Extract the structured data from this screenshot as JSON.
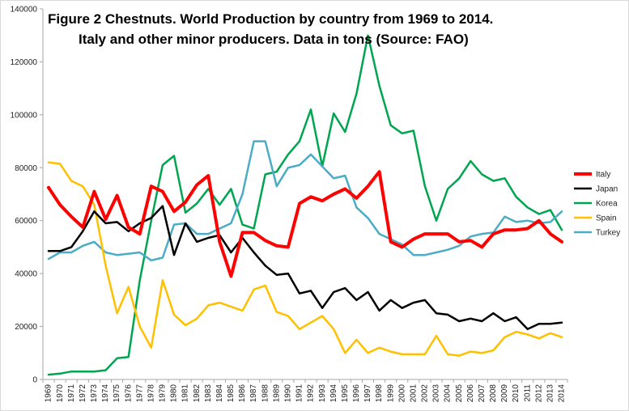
{
  "chart_data": {
    "type": "line",
    "title_lines": [
      "Figure 2 Chestnuts. World Production by country from 1969 to 2014.",
      "Italy and other minor producers. Data in tons (Source: FAO)"
    ],
    "xlabel": "",
    "ylabel": "",
    "ylim": [
      0,
      140000
    ],
    "yticks": [
      0,
      20000,
      40000,
      60000,
      80000,
      100000,
      120000,
      140000
    ],
    "grid": false,
    "legend_position": "right",
    "x": [
      1969,
      1970,
      1971,
      1972,
      1973,
      1974,
      1975,
      1976,
      1977,
      1978,
      1979,
      1980,
      1981,
      1982,
      1983,
      1984,
      1985,
      1986,
      1987,
      1988,
      1989,
      1990,
      1991,
      1992,
      1993,
      1994,
      1995,
      1996,
      1997,
      1998,
      1999,
      2000,
      2001,
      2002,
      2003,
      2004,
      2005,
      2006,
      2007,
      2008,
      2009,
      2010,
      2011,
      2012,
      2013,
      2014
    ],
    "series": [
      {
        "name": "Italy",
        "color": "#ff0000",
        "width": 4,
        "values": [
          72500,
          66000,
          61500,
          57500,
          71000,
          60500,
          69500,
          57500,
          55000,
          73000,
          71000,
          63500,
          67000,
          73500,
          77000,
          52000,
          39000,
          55500,
          55500,
          52500,
          50500,
          50000,
          66500,
          69000,
          67500,
          70000,
          72000,
          68500,
          73000,
          78500,
          52000,
          50000,
          53000,
          55000,
          55000,
          55000,
          52000,
          52500,
          50000,
          55000,
          56500,
          56500,
          57000,
          60000,
          55000,
          52000
        ]
      },
      {
        "name": "Japan",
        "color": "#000000",
        "width": 2.5,
        "values": [
          48500,
          48500,
          50000,
          56000,
          63500,
          59000,
          59500,
          56000,
          59000,
          61000,
          65500,
          47000,
          59000,
          52000,
          53500,
          54500,
          48000,
          53500,
          48000,
          43000,
          39500,
          40000,
          32500,
          33500,
          27000,
          33000,
          34500,
          30000,
          33000,
          26000,
          30000,
          27000,
          29000,
          30000,
          25000,
          24500,
          22000,
          23000,
          22000,
          25000,
          22000,
          23500,
          19000,
          21000,
          21000,
          21500
        ]
      },
      {
        "name": "Korea",
        "color": "#00a550",
        "width": 2.5,
        "values": [
          1800,
          2200,
          3000,
          3000,
          3000,
          3500,
          8000,
          8500,
          37500,
          60000,
          81000,
          84500,
          63000,
          66500,
          72000,
          66000,
          72000,
          58500,
          57000,
          77500,
          78500,
          85000,
          90000,
          102000,
          80500,
          100500,
          93500,
          108000,
          130000,
          111000,
          96000,
          93000,
          94000,
          73000,
          60000,
          72000,
          76000,
          82500,
          77500,
          75000,
          76000,
          69000,
          65000,
          62500,
          64000,
          56500
        ]
      },
      {
        "name": "Spain",
        "color": "#ffc000",
        "width": 2.5,
        "values": [
          82000,
          81500,
          75000,
          73000,
          66000,
          43000,
          25000,
          35000,
          20000,
          12000,
          37500,
          24500,
          20500,
          23000,
          28000,
          29000,
          27500,
          26000,
          34000,
          35500,
          25500,
          24000,
          19000,
          21500,
          24000,
          19000,
          10000,
          15000,
          10000,
          12000,
          10500,
          9500,
          9500,
          9500,
          16500,
          9500,
          9000,
          10500,
          10000,
          11000,
          16000,
          18000,
          17000,
          15500,
          17500,
          16000
        ]
      },
      {
        "name": "Turkey",
        "color": "#4bacc6",
        "width": 2.5,
        "values": [
          45500,
          48000,
          48000,
          50500,
          52000,
          48000,
          47000,
          47500,
          48000,
          45000,
          46000,
          58500,
          59000,
          55000,
          55000,
          57000,
          59000,
          70000,
          90000,
          90000,
          73000,
          80000,
          81000,
          85000,
          80500,
          76000,
          77000,
          65000,
          61000,
          55000,
          53000,
          51000,
          47000,
          47000,
          48000,
          49000,
          50500,
          54000,
          55000,
          55500,
          61500,
          59500,
          60000,
          59000,
          59500,
          63500
        ]
      }
    ]
  }
}
